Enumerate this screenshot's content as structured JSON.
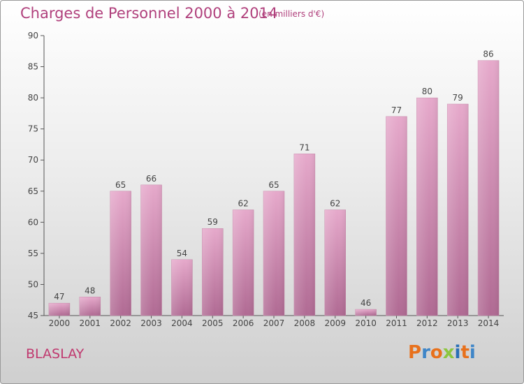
{
  "header": {
    "title": "Charges de Personnel 2000 à 2014",
    "subtitle": "(en milliers d'€)"
  },
  "footer": {
    "place": "BLASLAY",
    "logo_text": "Proxiti",
    "logo_colors": [
      "#e8711c",
      "#3f86c8",
      "#e8711c",
      "#8cc63f",
      "#2a6fb6",
      "#e8711c",
      "#3f86c8"
    ]
  },
  "chart_data": {
    "type": "bar",
    "categories": [
      "2000",
      "2001",
      "2002",
      "2003",
      "2004",
      "2005",
      "2006",
      "2007",
      "2008",
      "2009",
      "2010",
      "2011",
      "2012",
      "2013",
      "2014"
    ],
    "values": [
      47,
      48,
      65,
      66,
      54,
      59,
      62,
      65,
      71,
      62,
      46,
      77,
      80,
      79,
      86
    ],
    "ylim": [
      45,
      90
    ],
    "yticks": [
      45,
      50,
      55,
      60,
      65,
      70,
      75,
      80,
      85,
      90
    ],
    "grid": false,
    "bar_color": "#d98fb8",
    "bar_color_dark": "#b8678f",
    "title": "Charges de Personnel 2000 à 2014",
    "xlabel": "",
    "ylabel": ""
  }
}
